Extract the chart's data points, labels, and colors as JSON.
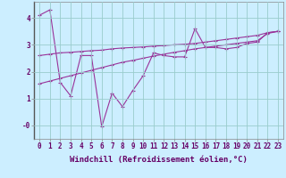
{
  "x": [
    0,
    1,
    2,
    3,
    4,
    5,
    6,
    7,
    8,
    9,
    10,
    11,
    12,
    13,
    14,
    15,
    16,
    17,
    18,
    19,
    20,
    21,
    22,
    23
  ],
  "y_jagged": [
    4.1,
    4.3,
    1.6,
    1.1,
    2.6,
    2.6,
    -0.05,
    1.2,
    0.7,
    1.3,
    1.85,
    2.7,
    2.6,
    2.55,
    2.55,
    3.6,
    2.9,
    2.9,
    2.85,
    2.9,
    3.05,
    3.1,
    3.45,
    3.5
  ],
  "y_smooth": [
    2.6,
    2.65,
    2.7,
    2.72,
    2.75,
    2.78,
    2.8,
    2.85,
    2.88,
    2.9,
    2.92,
    2.95,
    2.97,
    3.0,
    3.02,
    3.05,
    3.1,
    3.15,
    3.2,
    3.25,
    3.3,
    3.35,
    3.45,
    3.5
  ],
  "y_linear": [
    1.55,
    1.65,
    1.75,
    1.85,
    1.95,
    2.05,
    2.15,
    2.25,
    2.35,
    2.42,
    2.5,
    2.58,
    2.65,
    2.72,
    2.78,
    2.85,
    2.9,
    2.95,
    3.0,
    3.05,
    3.1,
    3.15,
    3.42,
    3.5
  ],
  "line_color": "#993399",
  "bg_color": "#cceeff",
  "grid_color": "#99cccc",
  "xlabel": "Windchill (Refroidissement éolien,°C)",
  "ylim": [
    -0.5,
    4.6
  ],
  "xlim": [
    -0.5,
    23.5
  ],
  "yticks": [
    0,
    1,
    2,
    3,
    4
  ],
  "ytick_labels": [
    "-0",
    "1",
    "2",
    "3",
    "4"
  ],
  "xticks": [
    0,
    1,
    2,
    3,
    4,
    5,
    6,
    7,
    8,
    9,
    10,
    11,
    12,
    13,
    14,
    15,
    16,
    17,
    18,
    19,
    20,
    21,
    22,
    23
  ],
  "marker": "+",
  "markersize": 3.5,
  "linewidth": 0.8,
  "xlabel_fontsize": 6.5,
  "tick_fontsize": 5.5
}
